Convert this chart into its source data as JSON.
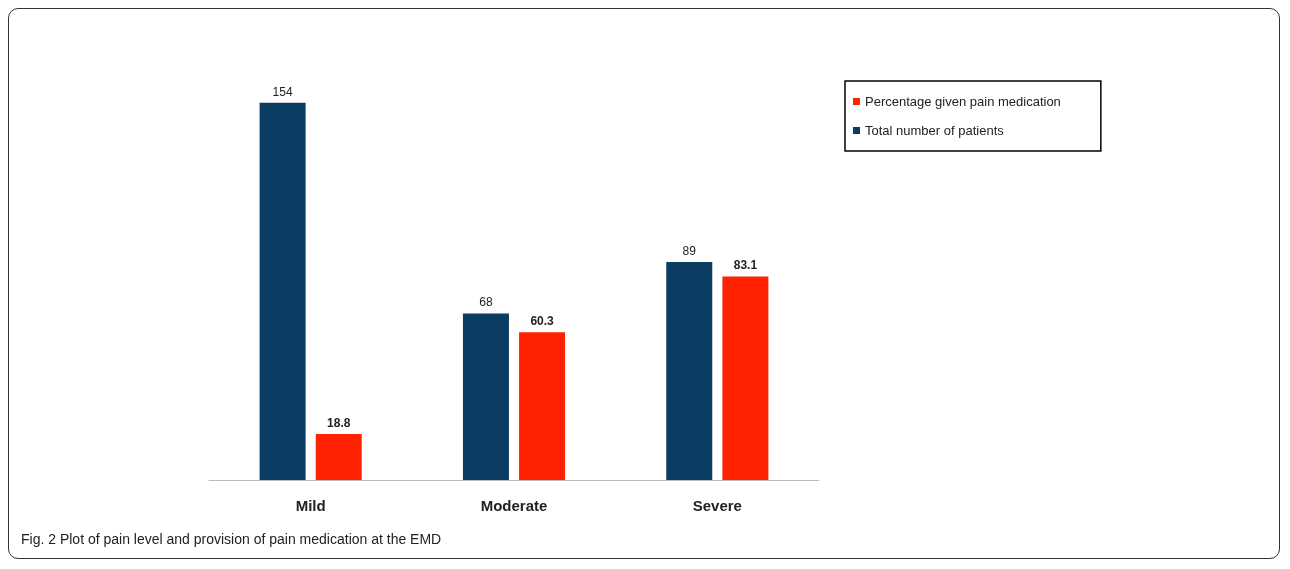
{
  "chart_data": {
    "type": "bar",
    "categories": [
      "Mild",
      "Moderate",
      "Severe"
    ],
    "series": [
      {
        "name": "Total number of patients",
        "color": "#0b3c61",
        "values": [
          154,
          68,
          89
        ]
      },
      {
        "name": "Percentage given pain medication",
        "color": "#ff2200",
        "values": [
          18.8,
          60.3,
          83.1
        ]
      }
    ],
    "data_labels": true,
    "legend": "right",
    "grid": false,
    "annotations": [
      "Fig. 2 Plot of pain level and provision of pain medication at the EMD"
    ]
  }
}
